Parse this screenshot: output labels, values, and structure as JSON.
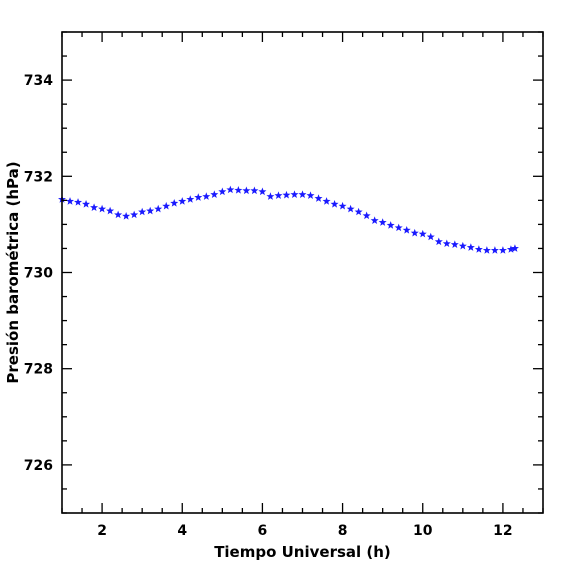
{
  "chart_data": {
    "type": "scatter",
    "title": "",
    "xlabel": "Tiempo Universal (h)",
    "ylabel": "Presión barométrica (hPa)",
    "xlim": [
      1,
      13
    ],
    "ylim": [
      725,
      735
    ],
    "xticks": [
      2,
      4,
      6,
      8,
      10,
      12
    ],
    "yticks": [
      726,
      728,
      730,
      732,
      734
    ],
    "x_minor_step": 0.5,
    "y_minor_step": 0.5,
    "marker": "star",
    "marker_color": "#1a1aff",
    "grid": false,
    "series": [
      {
        "x": [
          1.0,
          1.2,
          1.4,
          1.6,
          1.8,
          2.0,
          2.2,
          2.4,
          2.6,
          2.8,
          3.0,
          3.2,
          3.4,
          3.6,
          3.8,
          4.0,
          4.2,
          4.4,
          4.6,
          4.8,
          5.0,
          5.2,
          5.4,
          5.6,
          5.8,
          6.0,
          6.2,
          6.4,
          6.6,
          6.8,
          7.0,
          7.2,
          7.4,
          7.6,
          7.8,
          8.0,
          8.2,
          8.4,
          8.6,
          8.8,
          9.0,
          9.2,
          9.4,
          9.6,
          9.8,
          10.0,
          10.2,
          10.4,
          10.6,
          10.8,
          11.0,
          11.2,
          11.4,
          11.6,
          11.8,
          12.0,
          12.2,
          12.3
        ],
        "y": [
          731.52,
          731.48,
          731.46,
          731.42,
          731.35,
          731.32,
          731.28,
          731.2,
          731.17,
          731.2,
          731.26,
          731.28,
          731.32,
          731.38,
          731.44,
          731.48,
          731.52,
          731.56,
          731.58,
          731.62,
          731.68,
          731.72,
          731.71,
          731.7,
          731.7,
          731.68,
          731.58,
          731.6,
          731.61,
          731.62,
          731.62,
          731.6,
          731.54,
          731.48,
          731.42,
          731.38,
          731.32,
          731.26,
          731.18,
          731.08,
          731.04,
          730.98,
          730.93,
          730.88,
          730.82,
          730.8,
          730.74,
          730.64,
          730.6,
          730.58,
          730.55,
          730.52,
          730.48,
          730.46,
          730.46,
          730.46,
          730.48,
          730.5
        ]
      }
    ]
  }
}
